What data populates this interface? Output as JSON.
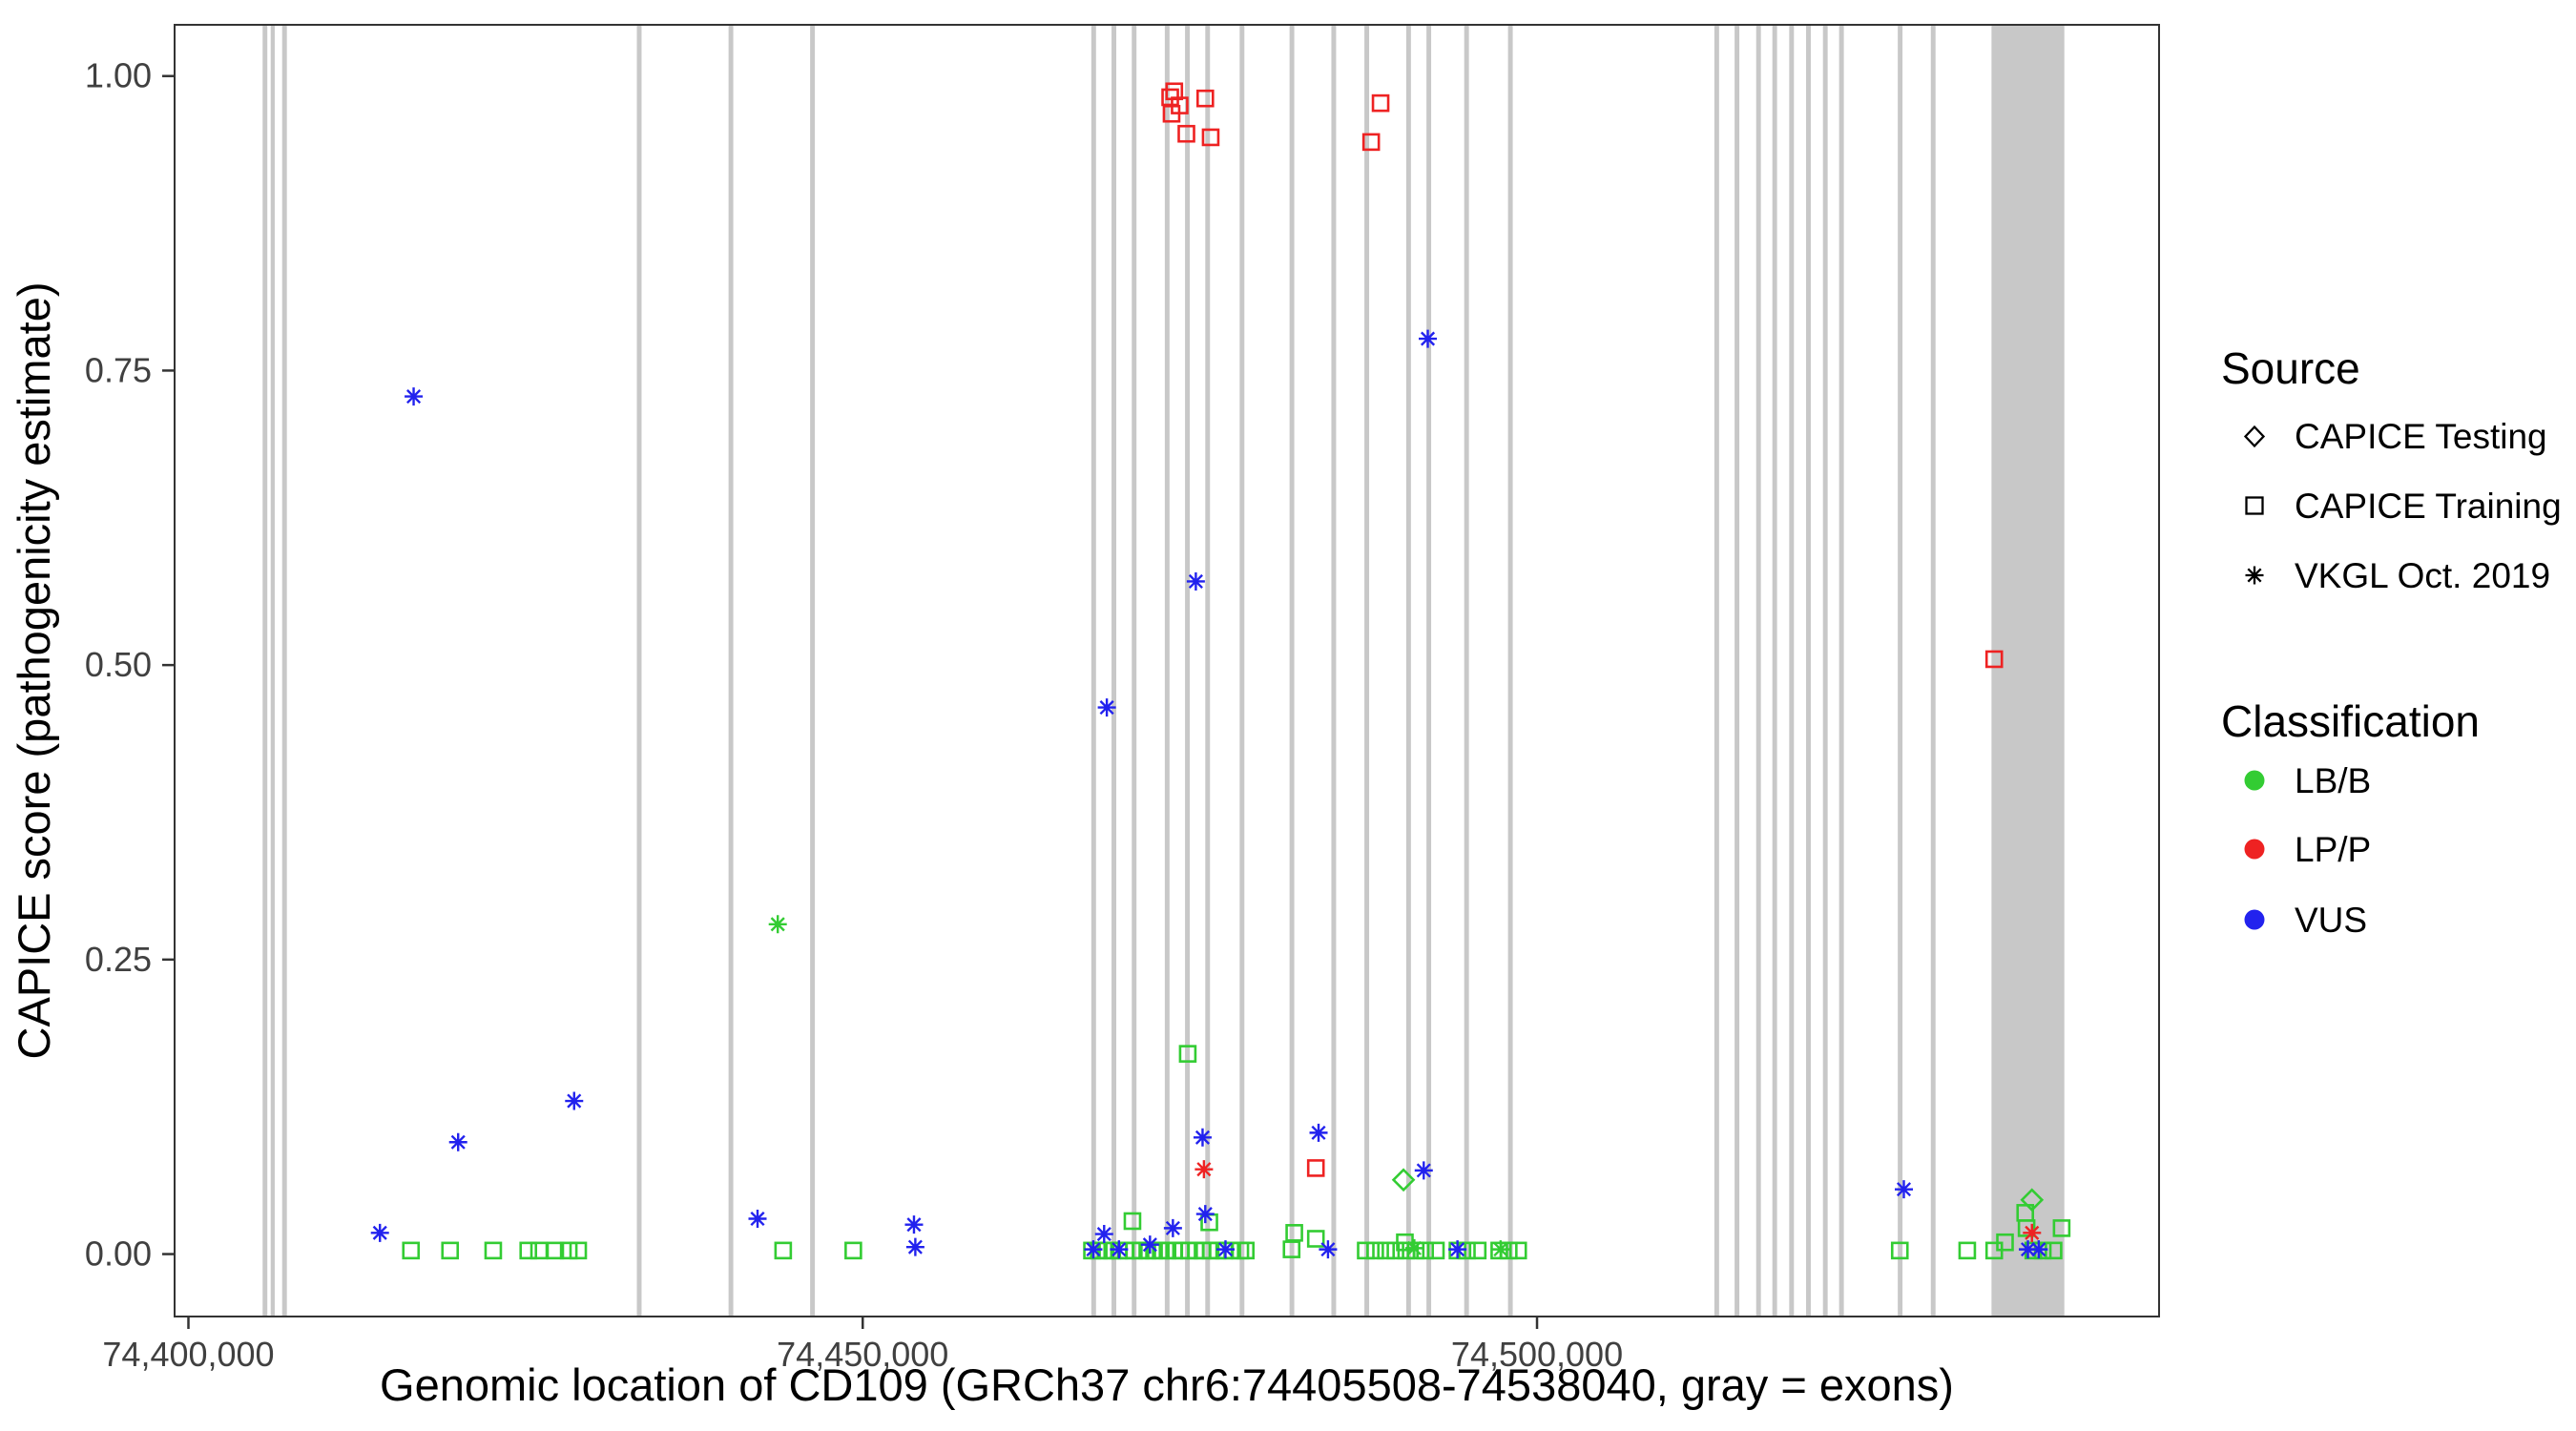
{
  "chart_data": {
    "type": "scatter",
    "title": "",
    "xlabel": "Genomic location of CD109 (GRCh37 chr6:74405508-74538040, gray = exons)",
    "ylabel": "CAPICE score (pathogenicity estimate)",
    "x_domain": [
      74398974,
      74546125
    ],
    "y_domain": [
      -0.053,
      1.0435
    ],
    "x_ticks": [
      {
        "value": 74400000,
        "label": "74,400,000"
      },
      {
        "value": 74450000,
        "label": "74,450,000"
      },
      {
        "value": 74500000,
        "label": "74,500,000"
      }
    ],
    "y_ticks": [
      {
        "value": 0.0,
        "label": "0.00"
      },
      {
        "value": 0.25,
        "label": "0.25"
      },
      {
        "value": 0.5,
        "label": "0.50"
      },
      {
        "value": 0.75,
        "label": "0.75"
      },
      {
        "value": 1.0,
        "label": "1.00"
      }
    ],
    "gene_region": [
      74405508,
      74538040
    ],
    "exon_color": "#c8c8c8",
    "exons": [
      [
        74405500,
        74405850
      ],
      [
        74406100,
        74406400
      ],
      [
        74406950,
        74407300
      ],
      [
        74433250,
        74433600
      ],
      [
        74440050,
        74440400
      ],
      [
        74446100,
        74446450
      ],
      [
        74466950,
        74467300
      ],
      [
        74468450,
        74468800
      ],
      [
        74469950,
        74470300
      ],
      [
        74472400,
        74472750
      ],
      [
        74473900,
        74474250
      ],
      [
        74475400,
        74475750
      ],
      [
        74477950,
        74478300
      ],
      [
        74481650,
        74482000
      ],
      [
        74484750,
        74485100
      ],
      [
        74487200,
        74487550
      ],
      [
        74490300,
        74490650
      ],
      [
        74491800,
        74492150
      ],
      [
        74494600,
        74494950
      ],
      [
        74497850,
        74498200
      ],
      [
        74513150,
        74513500
      ],
      [
        74514650,
        74515000
      ],
      [
        74516250,
        74516600
      ],
      [
        74517450,
        74517800
      ],
      [
        74518700,
        74519050
      ],
      [
        74519950,
        74520300
      ],
      [
        74521200,
        74521550
      ],
      [
        74522400,
        74522750
      ],
      [
        74526750,
        74527100
      ],
      [
        74529200,
        74529550
      ],
      [
        74533700,
        74539100
      ]
    ],
    "shape_by_source": {
      "testing": "diamond",
      "training": "square",
      "vkgl": "asterisk"
    },
    "color_by_classification": {
      "LB/B": "#33cc33",
      "LP/P": "#ee2222",
      "VUS": "#2222ee"
    },
    "points": [
      {
        "source": "training",
        "classification": "LB/B",
        "pos": 74416500,
        "score": 0.003
      },
      {
        "source": "training",
        "classification": "LB/B",
        "pos": 74419400,
        "score": 0.003
      },
      {
        "source": "training",
        "classification": "LB/B",
        "pos": 74422600,
        "score": 0.003
      },
      {
        "source": "training",
        "classification": "LB/B",
        "pos": 74425200,
        "score": 0.003
      },
      {
        "source": "training",
        "classification": "LB/B",
        "pos": 74426000,
        "score": 0.003
      },
      {
        "source": "training",
        "classification": "LB/B",
        "pos": 74427200,
        "score": 0.003
      },
      {
        "source": "training",
        "classification": "LB/B",
        "pos": 74428200,
        "score": 0.003
      },
      {
        "source": "training",
        "classification": "LB/B",
        "pos": 74428900,
        "score": 0.003
      },
      {
        "source": "training",
        "classification": "LB/B",
        "pos": 74444100,
        "score": 0.003
      },
      {
        "source": "training",
        "classification": "LB/B",
        "pos": 74449300,
        "score": 0.003
      },
      {
        "source": "training",
        "classification": "LB/B",
        "pos": 74467000,
        "score": 0.003
      },
      {
        "source": "training",
        "classification": "LB/B",
        "pos": 74467500,
        "score": 0.003
      },
      {
        "source": "training",
        "classification": "LB/B",
        "pos": 74468000,
        "score": 0.003
      },
      {
        "source": "training",
        "classification": "LB/B",
        "pos": 74468500,
        "score": 0.003
      },
      {
        "source": "training",
        "classification": "LB/B",
        "pos": 74469000,
        "score": 0.003
      },
      {
        "source": "training",
        "classification": "LB/B",
        "pos": 74469500,
        "score": 0.003
      },
      {
        "source": "training",
        "classification": "LB/B",
        "pos": 74470000,
        "score": 0.028
      },
      {
        "source": "training",
        "classification": "LB/B",
        "pos": 74470100,
        "score": 0.003
      },
      {
        "source": "training",
        "classification": "LB/B",
        "pos": 74470600,
        "score": 0.003
      },
      {
        "source": "training",
        "classification": "LB/B",
        "pos": 74471100,
        "score": 0.003
      },
      {
        "source": "training",
        "classification": "LB/B",
        "pos": 74471600,
        "score": 0.003
      },
      {
        "source": "training",
        "classification": "LB/B",
        "pos": 74472100,
        "score": 0.003
      },
      {
        "source": "training",
        "classification": "LB/B",
        "pos": 74472600,
        "score": 0.003
      },
      {
        "source": "training",
        "classification": "LB/B",
        "pos": 74473100,
        "score": 0.003
      },
      {
        "source": "training",
        "classification": "LB/B",
        "pos": 74473600,
        "score": 0.003
      },
      {
        "source": "training",
        "classification": "LB/B",
        "pos": 74474100,
        "score": 0.17
      },
      {
        "source": "training",
        "classification": "LB/B",
        "pos": 74474200,
        "score": 0.003
      },
      {
        "source": "training",
        "classification": "LB/B",
        "pos": 74474700,
        "score": 0.003
      },
      {
        "source": "training",
        "classification": "LB/B",
        "pos": 74475200,
        "score": 0.003
      },
      {
        "source": "training",
        "classification": "LB/B",
        "pos": 74475700,
        "score": 0.027
      },
      {
        "source": "training",
        "classification": "LB/B",
        "pos": 74475800,
        "score": 0.003
      },
      {
        "source": "training",
        "classification": "LB/B",
        "pos": 74476300,
        "score": 0.003
      },
      {
        "source": "training",
        "classification": "LB/B",
        "pos": 74476800,
        "score": 0.003
      },
      {
        "source": "training",
        "classification": "LB/B",
        "pos": 74477400,
        "score": 0.003
      },
      {
        "source": "training",
        "classification": "LB/B",
        "pos": 74478000,
        "score": 0.003
      },
      {
        "source": "training",
        "classification": "LB/B",
        "pos": 74478400,
        "score": 0.003
      },
      {
        "source": "training",
        "classification": "LB/B",
        "pos": 74481800,
        "score": 0.004
      },
      {
        "source": "training",
        "classification": "LB/B",
        "pos": 74482000,
        "score": 0.018
      },
      {
        "source": "training",
        "classification": "LB/B",
        "pos": 74483600,
        "score": 0.013
      },
      {
        "source": "training",
        "classification": "LB/B",
        "pos": 74487300,
        "score": 0.003
      },
      {
        "source": "training",
        "classification": "LB/B",
        "pos": 74488000,
        "score": 0.003
      },
      {
        "source": "training",
        "classification": "LB/B",
        "pos": 74488800,
        "score": 0.003
      },
      {
        "source": "training",
        "classification": "LB/B",
        "pos": 74489500,
        "score": 0.003
      },
      {
        "source": "training",
        "classification": "LB/B",
        "pos": 74490200,
        "score": 0.01
      },
      {
        "source": "training",
        "classification": "LB/B",
        "pos": 74490300,
        "score": 0.003
      },
      {
        "source": "training",
        "classification": "LB/B",
        "pos": 74491000,
        "score": 0.003
      },
      {
        "source": "training",
        "classification": "LB/B",
        "pos": 74491700,
        "score": 0.003
      },
      {
        "source": "training",
        "classification": "LB/B",
        "pos": 74492500,
        "score": 0.003
      },
      {
        "source": "training",
        "classification": "LB/B",
        "pos": 74494100,
        "score": 0.003
      },
      {
        "source": "training",
        "classification": "LB/B",
        "pos": 74494800,
        "score": 0.003
      },
      {
        "source": "training",
        "classification": "LB/B",
        "pos": 74495600,
        "score": 0.003
      },
      {
        "source": "training",
        "classification": "LB/B",
        "pos": 74497200,
        "score": 0.003
      },
      {
        "source": "training",
        "classification": "LB/B",
        "pos": 74497900,
        "score": 0.003
      },
      {
        "source": "training",
        "classification": "LB/B",
        "pos": 74498600,
        "score": 0.003
      },
      {
        "source": "training",
        "classification": "LB/B",
        "pos": 74526900,
        "score": 0.003
      },
      {
        "source": "training",
        "classification": "LB/B",
        "pos": 74531900,
        "score": 0.003
      },
      {
        "source": "training",
        "classification": "LB/B",
        "pos": 74533900,
        "score": 0.003
      },
      {
        "source": "training",
        "classification": "LB/B",
        "pos": 74534700,
        "score": 0.01
      },
      {
        "source": "training",
        "classification": "LB/B",
        "pos": 74536200,
        "score": 0.035
      },
      {
        "source": "training",
        "classification": "LB/B",
        "pos": 74536300,
        "score": 0.022
      },
      {
        "source": "training",
        "classification": "LB/B",
        "pos": 74536800,
        "score": 0.003
      },
      {
        "source": "training",
        "classification": "LB/B",
        "pos": 74537500,
        "score": 0.003
      },
      {
        "source": "training",
        "classification": "LB/B",
        "pos": 74538300,
        "score": 0.003
      },
      {
        "source": "training",
        "classification": "LB/B",
        "pos": 74538900,
        "score": 0.022
      },
      {
        "source": "training",
        "classification": "LP/P",
        "pos": 74472800,
        "score": 0.982
      },
      {
        "source": "training",
        "classification": "LP/P",
        "pos": 74472900,
        "score": 0.968
      },
      {
        "source": "training",
        "classification": "LP/P",
        "pos": 74473100,
        "score": 0.987
      },
      {
        "source": "training",
        "classification": "LP/P",
        "pos": 74473500,
        "score": 0.975
      },
      {
        "source": "training",
        "classification": "LP/P",
        "pos": 74474000,
        "score": 0.951
      },
      {
        "source": "training",
        "classification": "LP/P",
        "pos": 74475400,
        "score": 0.981
      },
      {
        "source": "training",
        "classification": "LP/P",
        "pos": 74475800,
        "score": 0.948
      },
      {
        "source": "training",
        "classification": "LP/P",
        "pos": 74487700,
        "score": 0.944
      },
      {
        "source": "training",
        "classification": "LP/P",
        "pos": 74488400,
        "score": 0.977
      },
      {
        "source": "training",
        "classification": "LP/P",
        "pos": 74483600,
        "score": 0.073
      },
      {
        "source": "training",
        "classification": "LP/P",
        "pos": 74533900,
        "score": 0.505
      },
      {
        "source": "vkgl",
        "classification": "VUS",
        "pos": 74414200,
        "score": 0.018
      },
      {
        "source": "vkgl",
        "classification": "VUS",
        "pos": 74416700,
        "score": 0.728
      },
      {
        "source": "vkgl",
        "classification": "VUS",
        "pos": 74420000,
        "score": 0.095
      },
      {
        "source": "vkgl",
        "classification": "VUS",
        "pos": 74428600,
        "score": 0.13
      },
      {
        "source": "vkgl",
        "classification": "VUS",
        "pos": 74442200,
        "score": 0.03
      },
      {
        "source": "vkgl",
        "classification": "VUS",
        "pos": 74453800,
        "score": 0.025
      },
      {
        "source": "vkgl",
        "classification": "VUS",
        "pos": 74453900,
        "score": 0.006
      },
      {
        "source": "vkgl",
        "classification": "VUS",
        "pos": 74467100,
        "score": 0.004
      },
      {
        "source": "vkgl",
        "classification": "VUS",
        "pos": 74467900,
        "score": 0.017
      },
      {
        "source": "vkgl",
        "classification": "VUS",
        "pos": 74468100,
        "score": 0.464
      },
      {
        "source": "vkgl",
        "classification": "VUS",
        "pos": 74469000,
        "score": 0.004
      },
      {
        "source": "vkgl",
        "classification": "VUS",
        "pos": 74471300,
        "score": 0.008
      },
      {
        "source": "vkgl",
        "classification": "VUS",
        "pos": 74473000,
        "score": 0.022
      },
      {
        "source": "vkgl",
        "classification": "VUS",
        "pos": 74474700,
        "score": 0.571
      },
      {
        "source": "vkgl",
        "classification": "VUS",
        "pos": 74475200,
        "score": 0.099
      },
      {
        "source": "vkgl",
        "classification": "VUS",
        "pos": 74475400,
        "score": 0.034
      },
      {
        "source": "vkgl",
        "classification": "VUS",
        "pos": 74476900,
        "score": 0.004
      },
      {
        "source": "vkgl",
        "classification": "VUS",
        "pos": 74483800,
        "score": 0.103
      },
      {
        "source": "vkgl",
        "classification": "VUS",
        "pos": 74484500,
        "score": 0.004
      },
      {
        "source": "vkgl",
        "classification": "VUS",
        "pos": 74491600,
        "score": 0.071
      },
      {
        "source": "vkgl",
        "classification": "VUS",
        "pos": 74491900,
        "score": 0.777
      },
      {
        "source": "vkgl",
        "classification": "VUS",
        "pos": 74494100,
        "score": 0.004
      },
      {
        "source": "vkgl",
        "classification": "VUS",
        "pos": 74527200,
        "score": 0.055
      },
      {
        "source": "vkgl",
        "classification": "VUS",
        "pos": 74536400,
        "score": 0.004
      },
      {
        "source": "vkgl",
        "classification": "VUS",
        "pos": 74537200,
        "score": 0.004
      },
      {
        "source": "vkgl",
        "classification": "LP/P",
        "pos": 74475300,
        "score": 0.072
      },
      {
        "source": "vkgl",
        "classification": "LP/P",
        "pos": 74536700,
        "score": 0.018
      },
      {
        "source": "vkgl",
        "classification": "LB/B",
        "pos": 74443700,
        "score": 0.28
      },
      {
        "source": "vkgl",
        "classification": "LB/B",
        "pos": 74490900,
        "score": 0.005
      },
      {
        "source": "vkgl",
        "classification": "LB/B",
        "pos": 74497300,
        "score": 0.004
      },
      {
        "source": "testing",
        "classification": "LB/B",
        "pos": 74490100,
        "score": 0.063
      },
      {
        "source": "testing",
        "classification": "LB/B",
        "pos": 74536700,
        "score": 0.046
      }
    ]
  },
  "legend": {
    "source": {
      "title": "Source",
      "items": [
        {
          "label": "CAPICE Testing",
          "shape": "diamond"
        },
        {
          "label": "CAPICE Training",
          "shape": "square"
        },
        {
          "label": "VKGL Oct. 2019",
          "shape": "asterisk"
        }
      ]
    },
    "classification": {
      "title": "Classification",
      "items": [
        {
          "label": "LB/B",
          "color": "#33cc33"
        },
        {
          "label": "LP/P",
          "color": "#ee2222"
        },
        {
          "label": "VUS",
          "color": "#2222ee"
        }
      ]
    }
  }
}
